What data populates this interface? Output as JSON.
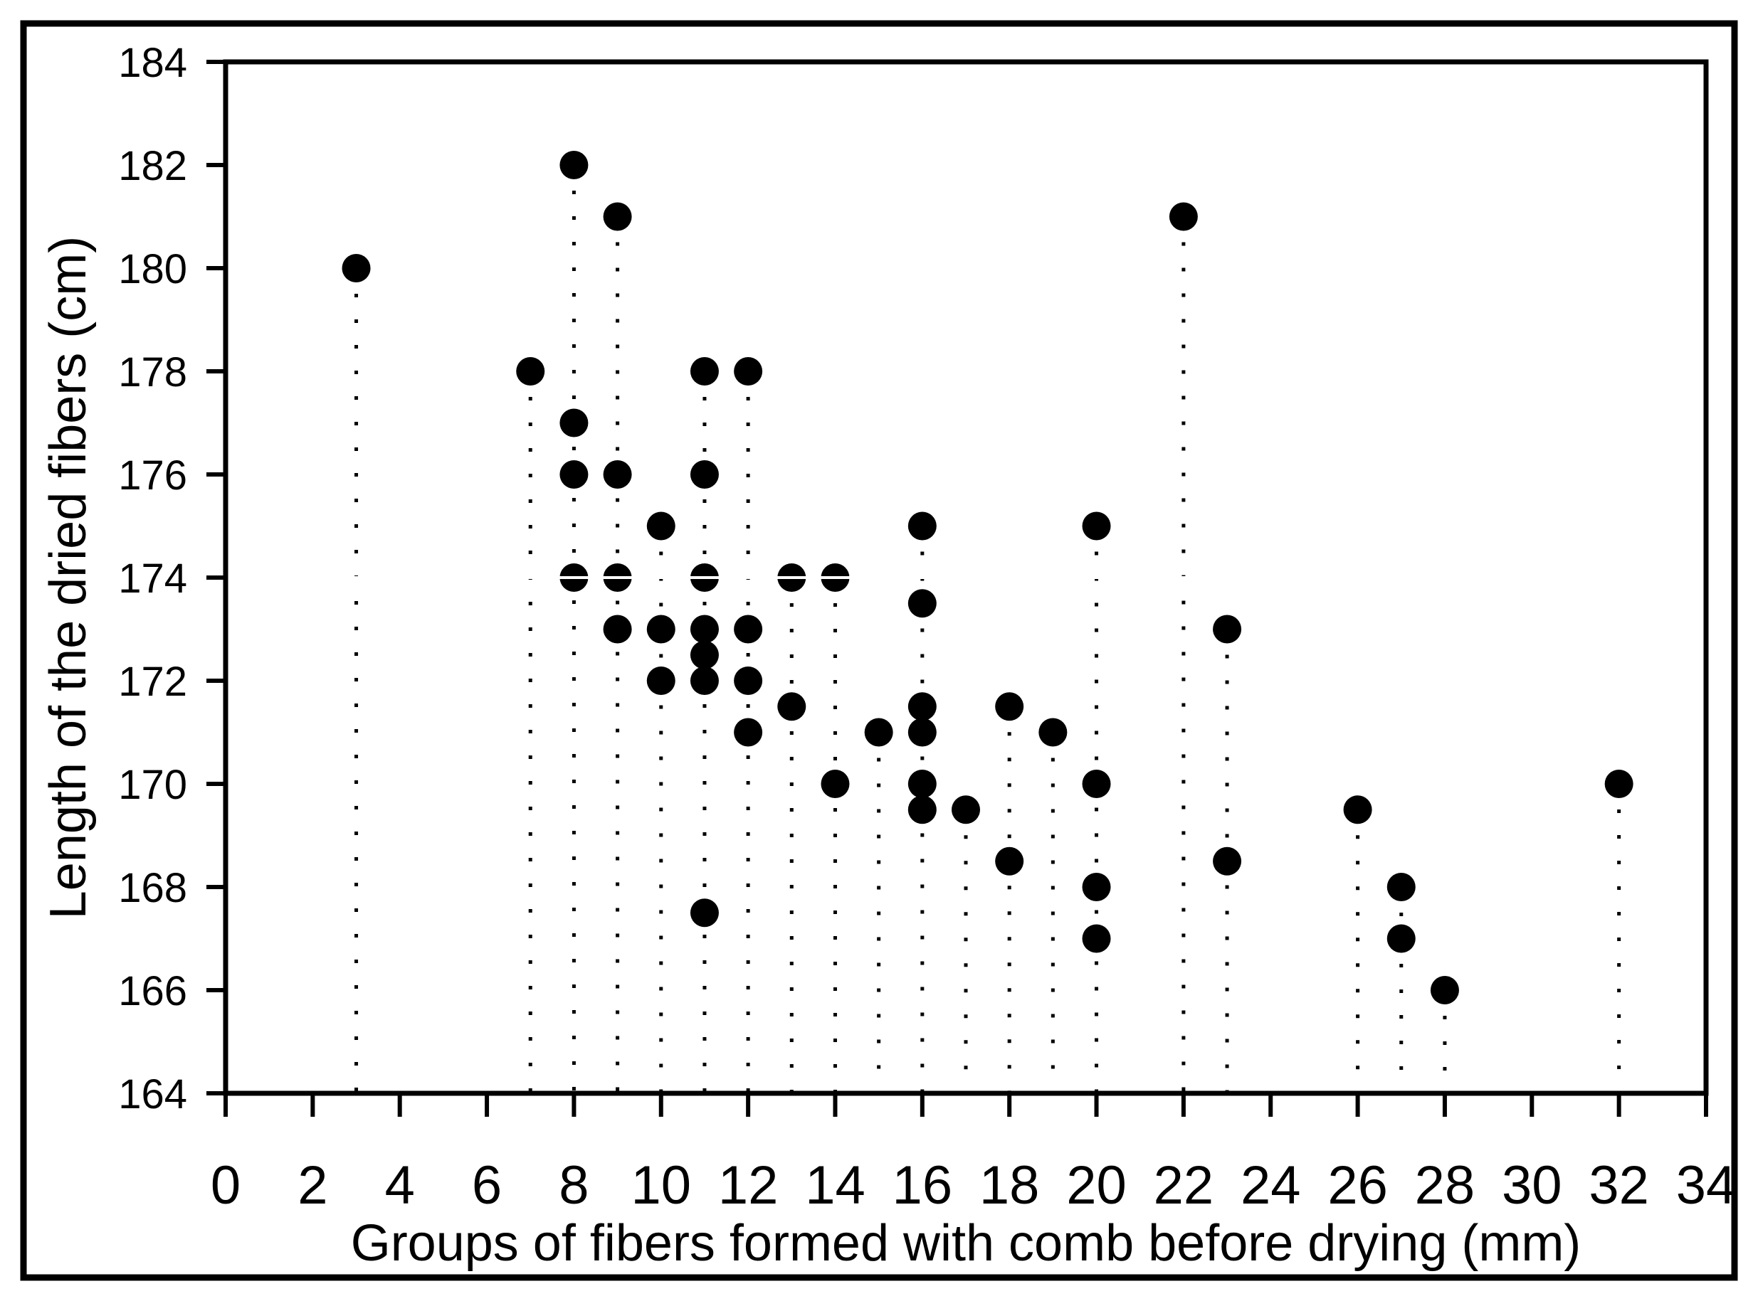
{
  "figure": {
    "background_color": "#ffffff",
    "border_color": "#000000",
    "plot_frame_color": "#000000"
  },
  "chart_data": {
    "type": "scatter",
    "title": "",
    "xlabel": "Groups of fibers formed with comb before drying (mm)",
    "ylabel": "Length of the dried fibers (cm)",
    "xlim": [
      0,
      34
    ],
    "ylim": [
      164,
      184
    ],
    "x_ticks": [
      0,
      2,
      4,
      6,
      8,
      10,
      12,
      14,
      16,
      18,
      20,
      22,
      24,
      26,
      28,
      30,
      32,
      34
    ],
    "y_ticks": [
      164,
      166,
      168,
      170,
      172,
      174,
      176,
      178,
      180,
      182,
      184
    ],
    "grid": "off",
    "legend": "none",
    "marker": {
      "shape": "filled-circle",
      "color": "#000000",
      "radius_px": 20
    },
    "drop_lines": {
      "style": "dotted",
      "color": "#000000",
      "from": "highest point of each x column",
      "to_y": 164
    },
    "white_reference_line_y": 174,
    "points": [
      {
        "x": 3,
        "y": 180
      },
      {
        "x": 7,
        "y": 178
      },
      {
        "x": 8,
        "y": 182
      },
      {
        "x": 8,
        "y": 177
      },
      {
        "x": 8,
        "y": 176
      },
      {
        "x": 8,
        "y": 174
      },
      {
        "x": 9,
        "y": 181
      },
      {
        "x": 9,
        "y": 176
      },
      {
        "x": 9,
        "y": 174
      },
      {
        "x": 9,
        "y": 173
      },
      {
        "x": 10,
        "y": 175
      },
      {
        "x": 10,
        "y": 173
      },
      {
        "x": 10,
        "y": 172
      },
      {
        "x": 11,
        "y": 178
      },
      {
        "x": 11,
        "y": 176
      },
      {
        "x": 11,
        "y": 174
      },
      {
        "x": 11,
        "y": 173
      },
      {
        "x": 11,
        "y": 172.5
      },
      {
        "x": 11,
        "y": 172
      },
      {
        "x": 11,
        "y": 167.5
      },
      {
        "x": 12,
        "y": 178
      },
      {
        "x": 12,
        "y": 173
      },
      {
        "x": 12,
        "y": 172
      },
      {
        "x": 12,
        "y": 171
      },
      {
        "x": 13,
        "y": 174
      },
      {
        "x": 13,
        "y": 171.5
      },
      {
        "x": 14,
        "y": 174
      },
      {
        "x": 14,
        "y": 170
      },
      {
        "x": 15,
        "y": 171
      },
      {
        "x": 16,
        "y": 175
      },
      {
        "x": 16,
        "y": 173.5
      },
      {
        "x": 16,
        "y": 171.5
      },
      {
        "x": 16,
        "y": 171
      },
      {
        "x": 16,
        "y": 170
      },
      {
        "x": 16,
        "y": 169.5
      },
      {
        "x": 17,
        "y": 169.5
      },
      {
        "x": 18,
        "y": 171.5
      },
      {
        "x": 18,
        "y": 168.5
      },
      {
        "x": 19,
        "y": 171
      },
      {
        "x": 20,
        "y": 175
      },
      {
        "x": 20,
        "y": 170
      },
      {
        "x": 20,
        "y": 168
      },
      {
        "x": 20,
        "y": 167
      },
      {
        "x": 22,
        "y": 181
      },
      {
        "x": 23,
        "y": 173
      },
      {
        "x": 23,
        "y": 168.5
      },
      {
        "x": 26,
        "y": 169.5
      },
      {
        "x": 27,
        "y": 168
      },
      {
        "x": 27,
        "y": 167
      },
      {
        "x": 28,
        "y": 166
      },
      {
        "x": 32,
        "y": 170
      }
    ]
  }
}
